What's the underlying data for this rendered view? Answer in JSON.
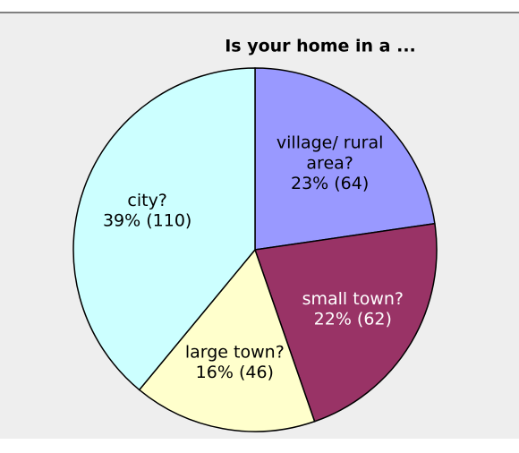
{
  "chart_data": {
    "type": "pie",
    "title": "Is your home in a ...",
    "categories": [
      "village/ rural area?",
      "small town?",
      "large town?",
      "city?"
    ],
    "values": [
      64,
      62,
      46,
      110
    ],
    "value_labels": [
      "23% (64)",
      "22% (62)",
      "16% (46)",
      "39% (110)"
    ],
    "colors": [
      "#9999ff",
      "#993366",
      "#ffffcc",
      "#ccffff"
    ]
  }
}
